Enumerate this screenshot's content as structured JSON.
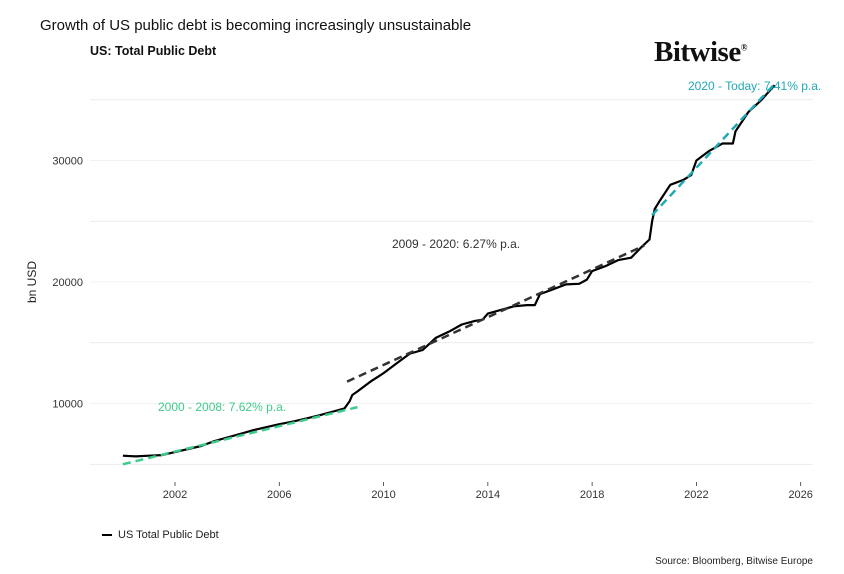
{
  "title": "Growth of US public debt is becoming increasingly unsustainable",
  "logo_text": "Bitwise",
  "legend_label": "US Total Public Debt",
  "source": "Source: Bloomberg, Bitwise Europe",
  "chart_data": {
    "type": "line",
    "title": "US: Total Public Debt",
    "xlabel": "",
    "ylabel": "bn USD",
    "xlim": [
      1999.5,
      2026.2
    ],
    "ylim": [
      3500,
      37500
    ],
    "x_ticks": [
      2002,
      2006,
      2010,
      2014,
      2018,
      2022,
      2026
    ],
    "y_ticks": [
      10000,
      20000,
      30000
    ],
    "grid": "horizontal",
    "legend": "bottom-left",
    "series": [
      {
        "name": "US Total Public Debt",
        "color": "#000000",
        "x": [
          2000.0,
          2000.5,
          2001.0,
          2001.5,
          2002.0,
          2002.5,
          2003.0,
          2003.5,
          2004.0,
          2004.5,
          2005.0,
          2005.5,
          2006.0,
          2006.5,
          2007.0,
          2007.5,
          2008.0,
          2008.5,
          2008.7,
          2008.8,
          2009.0,
          2009.5,
          2010.0,
          2010.5,
          2011.0,
          2011.5,
          2012.0,
          2012.5,
          2013.0,
          2013.5,
          2013.8,
          2014.0,
          2014.5,
          2015.0,
          2015.5,
          2015.8,
          2016.0,
          2016.5,
          2017.0,
          2017.5,
          2017.8,
          2018.0,
          2018.5,
          2019.0,
          2019.5,
          2019.9,
          2020.2,
          2020.3,
          2020.4,
          2020.6,
          2021.0,
          2021.5,
          2021.8,
          2022.0,
          2022.5,
          2023.0,
          2023.4,
          2023.5,
          2024.0,
          2024.5,
          2025.0
        ],
        "y": [
          5700,
          5650,
          5700,
          5750,
          6000,
          6250,
          6500,
          6900,
          7200,
          7500,
          7800,
          8050,
          8300,
          8500,
          8750,
          9000,
          9300,
          9600,
          10200,
          10700,
          11000,
          11800,
          12500,
          13300,
          14100,
          14400,
          15400,
          15900,
          16500,
          16800,
          16900,
          17400,
          17700,
          18000,
          18100,
          18100,
          19000,
          19400,
          19800,
          19850,
          20200,
          20900,
          21300,
          21800,
          22000,
          22900,
          23500,
          25000,
          26000,
          26700,
          28000,
          28400,
          28800,
          30000,
          30800,
          31400,
          31400,
          32400,
          34000,
          35000,
          36200
        ]
      }
    ],
    "trendlines": [
      {
        "label": "2000 - 2008: 7.62% p.a.",
        "color": "#3DCB8B",
        "x": [
          2000.0,
          2009.0
        ],
        "y": [
          5000,
          9700
        ]
      },
      {
        "label": "2009 - 2020: 6.27% p.a.",
        "color": "#333333",
        "x": [
          2008.6,
          2020.0
        ],
        "y": [
          11800,
          23000
        ]
      },
      {
        "label": "2020 - Today: 7.41% p.a.",
        "color": "#1FA9B5",
        "x": [
          2020.3,
          2025.0
        ],
        "y": [
          25500,
          36300
        ]
      }
    ]
  }
}
